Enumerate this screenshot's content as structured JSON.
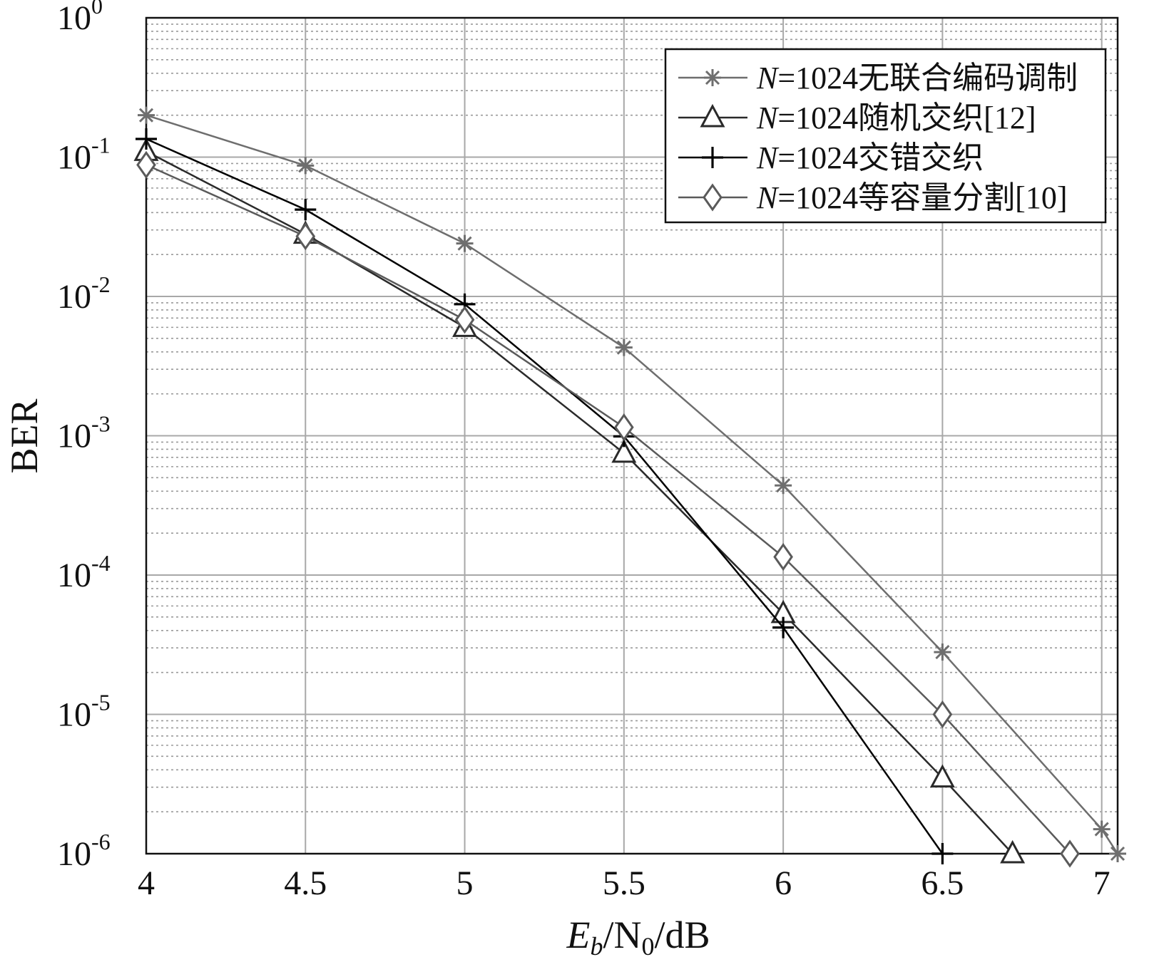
{
  "chart_data": {
    "type": "line",
    "xlabel": {
      "base": "E",
      "sub": "b",
      "mid": "/N",
      "sub2": "0",
      "tail": "/dB"
    },
    "ylabel": "BER",
    "xscale": "linear",
    "yscale": "log",
    "xlim": [
      4,
      7.05
    ],
    "ylim": [
      1e-06,
      1
    ],
    "grid": {
      "major": true,
      "minor": true
    },
    "legend_position": "top-right",
    "x_ticks": [
      "4",
      "4.5",
      "5",
      "5.5",
      "6",
      "6.5",
      "7"
    ],
    "y_ticks": [
      {
        "base": "10",
        "exp": "0"
      },
      {
        "base": "10",
        "exp": "-1"
      },
      {
        "base": "10",
        "exp": "-2"
      },
      {
        "base": "10",
        "exp": "-3"
      },
      {
        "base": "10",
        "exp": "-4"
      },
      {
        "base": "10",
        "exp": "-5"
      },
      {
        "base": "10",
        "exp": "-6"
      }
    ],
    "series": [
      {
        "name_prefix": "N",
        "name_rest": "=1024无联合编码调制",
        "marker": "star",
        "color": "#6e6e6e",
        "x": [
          4,
          4.5,
          5,
          5.5,
          6,
          6.5,
          7,
          7.05
        ],
        "y": [
          0.2,
          0.087,
          0.024,
          0.0043,
          0.00044,
          2.8e-05,
          1.5e-06,
          1e-06
        ]
      },
      {
        "name_prefix": "N",
        "name_rest": "=1024随机交织[12]",
        "marker": "triangle",
        "color": "#2a2a2a",
        "x": [
          4,
          4.5,
          5,
          5.5,
          6,
          6.5,
          6.72
        ],
        "y": [
          0.11,
          0.028,
          0.006,
          0.00075,
          5.3e-05,
          3.5e-06,
          1e-06
        ]
      },
      {
        "name_prefix": "N",
        "name_rest": "=1024交错交织",
        "marker": "plus",
        "color": "#000000",
        "x": [
          4,
          4.5,
          5,
          5.5,
          6,
          6.5
        ],
        "y": [
          0.135,
          0.042,
          0.0088,
          0.00099,
          4.2e-05,
          1e-06
        ]
      },
      {
        "name_prefix": "N",
        "name_rest": "=1024等容量分割[10]",
        "marker": "diamond",
        "color": "#5a5a5a",
        "x": [
          4,
          4.5,
          5,
          5.5,
          6,
          6.5,
          6.9
        ],
        "y": [
          0.088,
          0.027,
          0.0068,
          0.00115,
          0.000135,
          1e-05,
          1e-06
        ]
      }
    ]
  }
}
